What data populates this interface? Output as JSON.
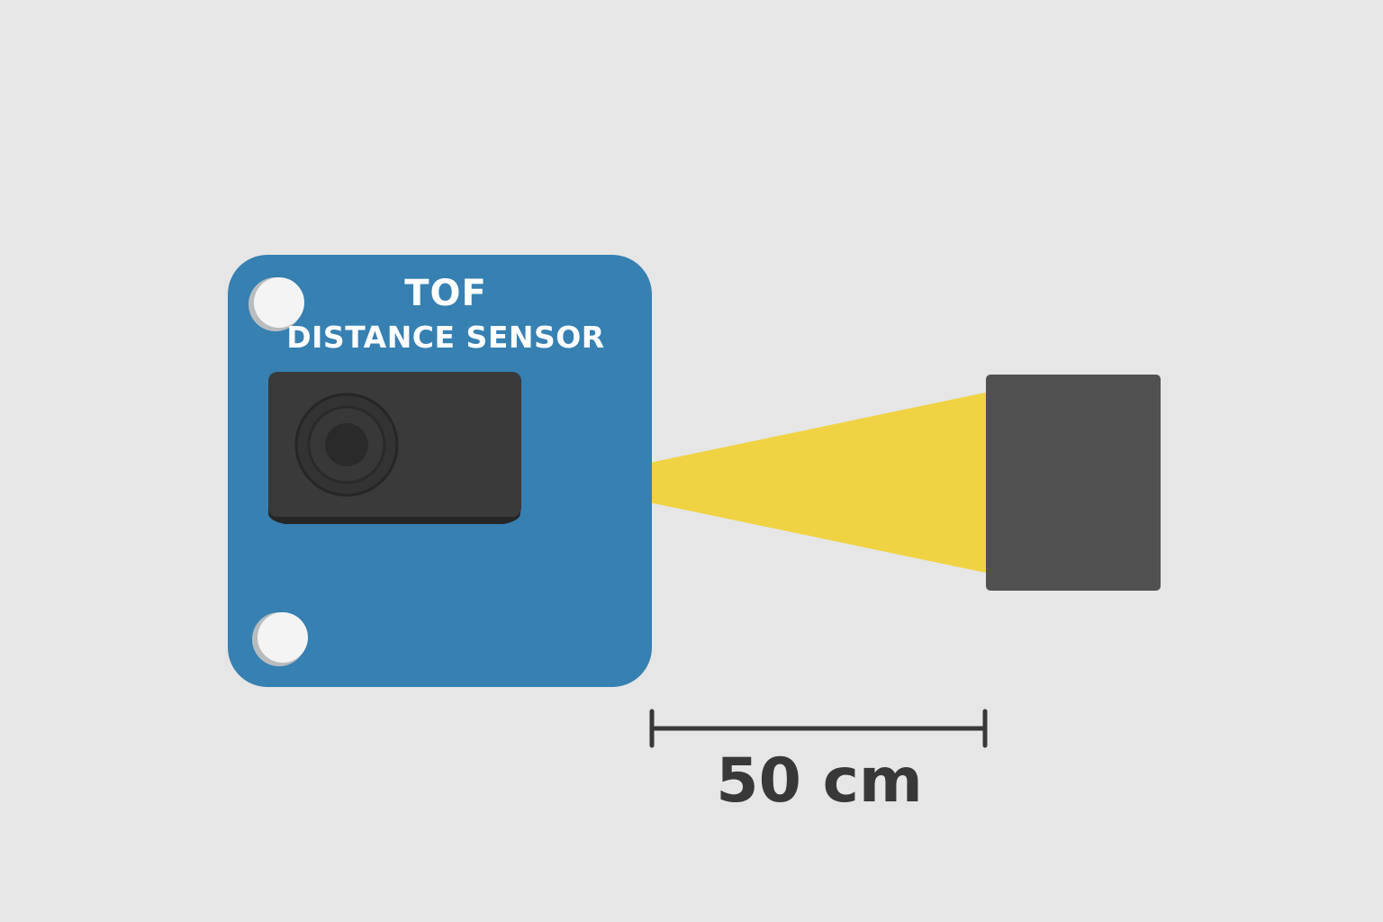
{
  "sensor": {
    "title": "TOF",
    "subtitle": "DISTANCE SENSOR"
  },
  "measurement": {
    "label": "50 cm"
  },
  "colors": {
    "background": "#e6e6e6",
    "board": "#3680b2",
    "sensor_module": "#3a3a3a",
    "lens_core": "#2a2a2a",
    "beam": "#f0d030",
    "target": "#505050",
    "dimension_line": "#383838"
  }
}
